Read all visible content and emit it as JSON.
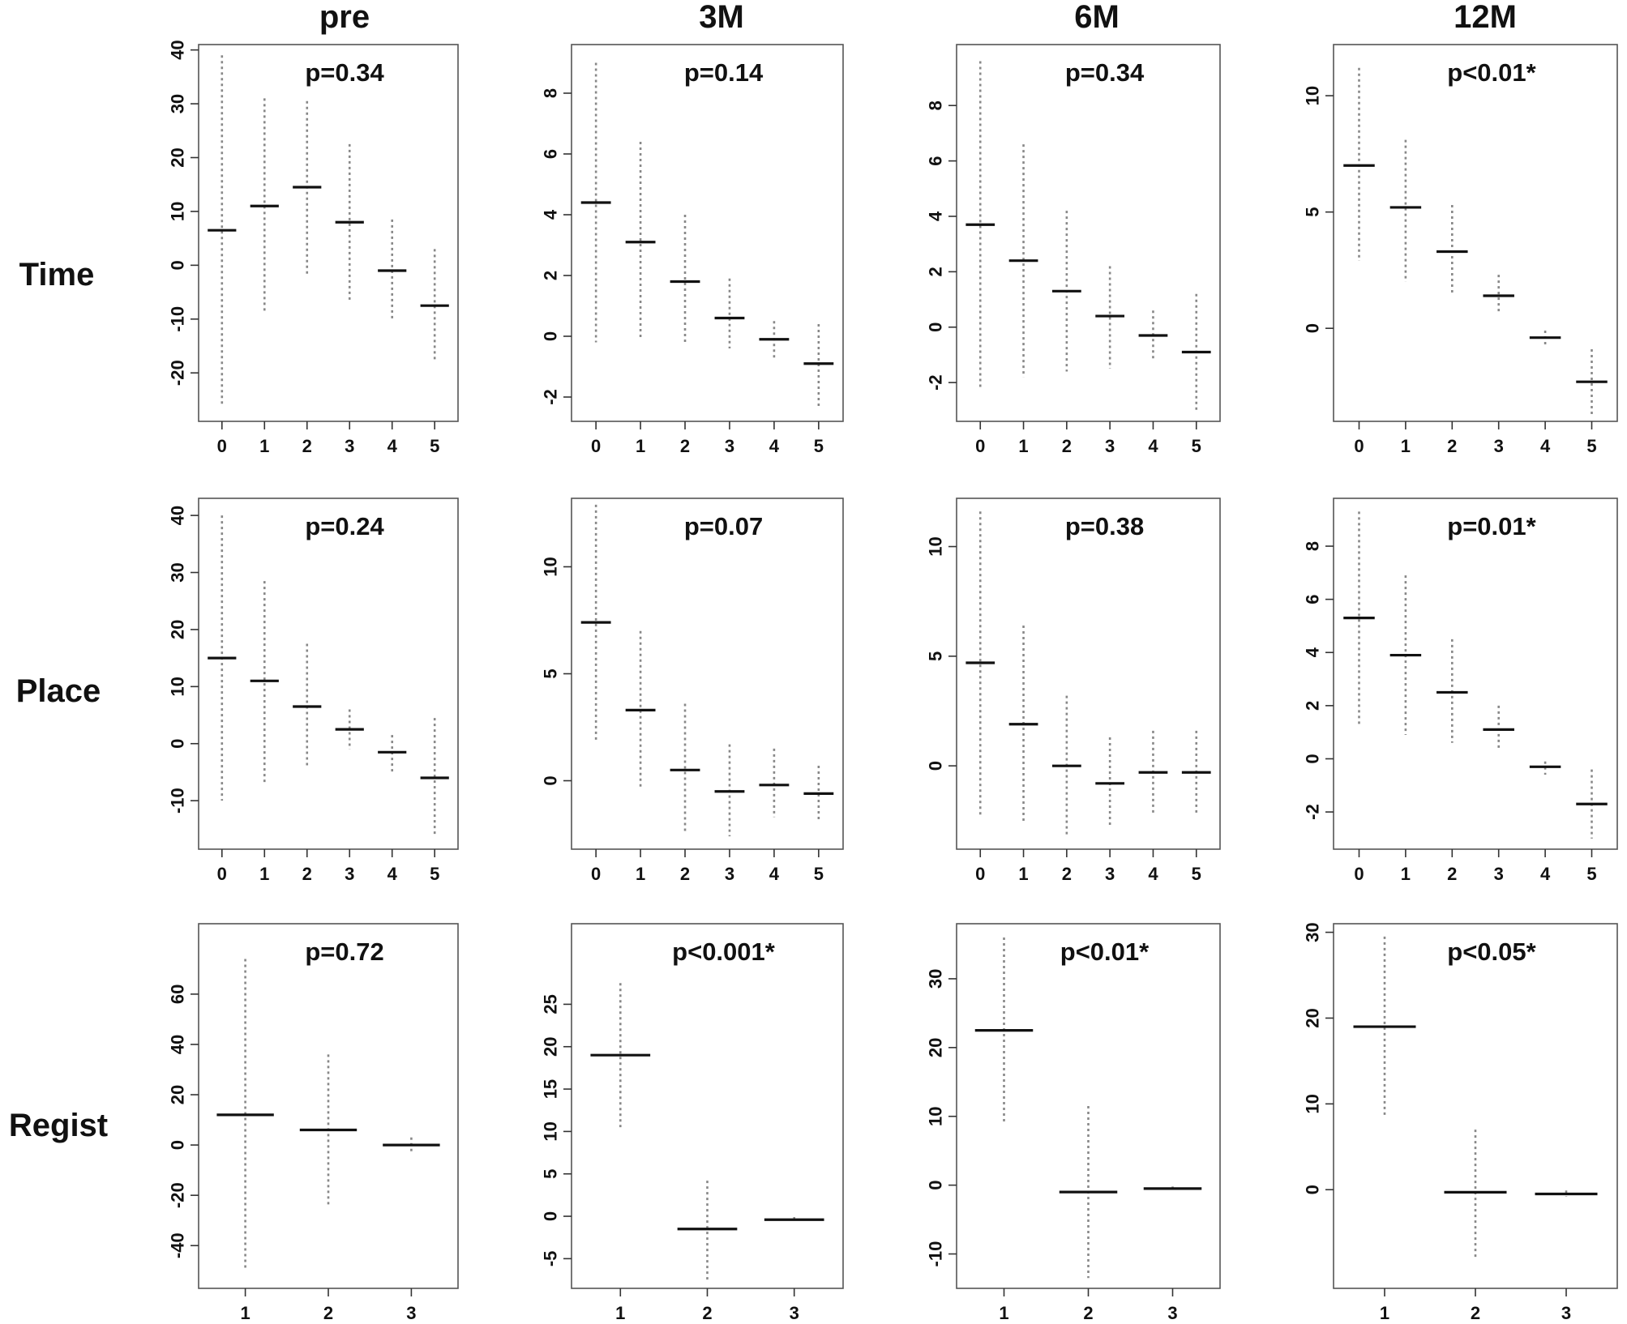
{
  "column_titles": [
    "pre",
    "3M",
    "6M",
    "12M"
  ],
  "row_titles": [
    "Time",
    "Place",
    "Regist"
  ],
  "chart_data": [
    {
      "type": "box",
      "row": "Time",
      "column": "pre",
      "pvalue": "p=0.34",
      "categories": [
        "0",
        "1",
        "2",
        "3",
        "4",
        "5"
      ],
      "ylim": [
        -29,
        41
      ],
      "yticks": [
        -20,
        -10,
        0,
        10,
        20,
        30,
        40
      ],
      "series": [
        {
          "x": "0",
          "median": 6.5,
          "low": -26,
          "high": 39
        },
        {
          "x": "1",
          "median": 11,
          "low": -9,
          "high": 31
        },
        {
          "x": "2",
          "median": 14.5,
          "low": -2,
          "high": 30.5
        },
        {
          "x": "3",
          "median": 8,
          "low": -6.5,
          "high": 22.5
        },
        {
          "x": "4",
          "median": -1,
          "low": -10,
          "high": 8.5
        },
        {
          "x": "5",
          "median": -7.5,
          "low": -17.5,
          "high": 3
        }
      ]
    },
    {
      "type": "box",
      "row": "Time",
      "column": "3M",
      "pvalue": "p=0.14",
      "categories": [
        "0",
        "1",
        "2",
        "3",
        "4",
        "5"
      ],
      "ylim": [
        -2.8,
        9.6
      ],
      "yticks": [
        -2,
        0,
        2,
        4,
        6,
        8
      ],
      "series": [
        {
          "x": "0",
          "median": 4.4,
          "low": -0.2,
          "high": 9
        },
        {
          "x": "1",
          "median": 3.1,
          "low": -0.1,
          "high": 6.4
        },
        {
          "x": "2",
          "median": 1.8,
          "low": -0.2,
          "high": 4
        },
        {
          "x": "3",
          "median": 0.6,
          "low": -0.4,
          "high": 1.9
        },
        {
          "x": "4",
          "median": -0.1,
          "low": -0.7,
          "high": 0.5
        },
        {
          "x": "5",
          "median": -0.9,
          "low": -2.4,
          "high": 0.4
        }
      ]
    },
    {
      "type": "box",
      "row": "Time",
      "column": "6M",
      "pvalue": "p=0.34",
      "categories": [
        "0",
        "1",
        "2",
        "3",
        "4",
        "5"
      ],
      "ylim": [
        -3.4,
        10.2
      ],
      "yticks": [
        -2,
        0,
        2,
        4,
        6,
        8
      ],
      "series": [
        {
          "x": "0",
          "median": 3.7,
          "low": -2.2,
          "high": 9.6
        },
        {
          "x": "1",
          "median": 2.4,
          "low": -1.8,
          "high": 6.6
        },
        {
          "x": "2",
          "median": 1.3,
          "low": -1.6,
          "high": 4.2
        },
        {
          "x": "3",
          "median": 0.4,
          "low": -1.5,
          "high": 2.2
        },
        {
          "x": "4",
          "median": -0.3,
          "low": -1.2,
          "high": 0.6
        },
        {
          "x": "5",
          "median": -0.9,
          "low": -3,
          "high": 1.2
        }
      ]
    },
    {
      "type": "box",
      "row": "Time",
      "column": "12M",
      "pvalue": "p<0.01*",
      "categories": [
        "0",
        "1",
        "2",
        "3",
        "4",
        "5"
      ],
      "ylim": [
        -4,
        12.2
      ],
      "yticks": [
        0,
        5,
        10
      ],
      "series": [
        {
          "x": "0",
          "median": 7,
          "low": 2.9,
          "high": 11.2
        },
        {
          "x": "1",
          "median": 5.2,
          "low": 2,
          "high": 8.1
        },
        {
          "x": "2",
          "median": 3.3,
          "low": 1.4,
          "high": 5.3
        },
        {
          "x": "3",
          "median": 1.4,
          "low": 0.6,
          "high": 2.3
        },
        {
          "x": "4",
          "median": -0.4,
          "low": -0.7,
          "high": -0.1
        },
        {
          "x": "5",
          "median": -2.3,
          "low": -3.7,
          "high": -0.9
        }
      ]
    },
    {
      "type": "box",
      "row": "Place",
      "column": "pre",
      "pvalue": "p=0.24",
      "categories": [
        "0",
        "1",
        "2",
        "3",
        "4",
        "5"
      ],
      "ylim": [
        -18.5,
        43
      ],
      "yticks": [
        -10,
        0,
        10,
        20,
        30,
        40
      ],
      "series": [
        {
          "x": "0",
          "median": 15,
          "low": -10,
          "high": 40
        },
        {
          "x": "1",
          "median": 11,
          "low": -7,
          "high": 28.5
        },
        {
          "x": "2",
          "median": 6.5,
          "low": -4,
          "high": 17.5
        },
        {
          "x": "3",
          "median": 2.5,
          "low": -1,
          "high": 6
        },
        {
          "x": "4",
          "median": -1.5,
          "low": -5,
          "high": 1.5
        },
        {
          "x": "5",
          "median": -6,
          "low": -16,
          "high": 4.5
        }
      ]
    },
    {
      "type": "box",
      "row": "Place",
      "column": "3M",
      "pvalue": "p=0.07",
      "categories": [
        "0",
        "1",
        "2",
        "3",
        "4",
        "5"
      ],
      "ylim": [
        -3.2,
        13.2
      ],
      "yticks": [
        0,
        5,
        10
      ],
      "series": [
        {
          "x": "0",
          "median": 7.4,
          "low": 1.9,
          "high": 12.9
        },
        {
          "x": "1",
          "median": 3.3,
          "low": -0.3,
          "high": 7
        },
        {
          "x": "2",
          "median": 0.5,
          "low": -2.5,
          "high": 3.6
        },
        {
          "x": "3",
          "median": -0.5,
          "low": -2.6,
          "high": 1.7
        },
        {
          "x": "4",
          "median": -0.2,
          "low": -1.7,
          "high": 1.5
        },
        {
          "x": "5",
          "median": -0.6,
          "low": -1.9,
          "high": 0.7
        }
      ]
    },
    {
      "type": "box",
      "row": "Place",
      "column": "6M",
      "pvalue": "p=0.38",
      "categories": [
        "0",
        "1",
        "2",
        "3",
        "4",
        "5"
      ],
      "ylim": [
        -3.8,
        12.2
      ],
      "yticks": [
        0,
        5,
        10
      ],
      "series": [
        {
          "x": "0",
          "median": 4.7,
          "low": -2.3,
          "high": 11.6
        },
        {
          "x": "1",
          "median": 1.9,
          "low": -2.6,
          "high": 6.4
        },
        {
          "x": "2",
          "median": 0,
          "low": -3.2,
          "high": 3.2
        },
        {
          "x": "3",
          "median": -0.8,
          "low": -2.8,
          "high": 1.3
        },
        {
          "x": "4",
          "median": -0.3,
          "low": -2.2,
          "high": 1.6
        },
        {
          "x": "5",
          "median": -0.3,
          "low": -2.2,
          "high": 1.6
        }
      ]
    },
    {
      "type": "box",
      "row": "Place",
      "column": "12M",
      "pvalue": "p=0.01*",
      "categories": [
        "0",
        "1",
        "2",
        "3",
        "4",
        "5"
      ],
      "ylim": [
        -3.4,
        9.8
      ],
      "yticks": [
        -2,
        0,
        2,
        4,
        6,
        8
      ],
      "series": [
        {
          "x": "0",
          "median": 5.3,
          "low": 1.2,
          "high": 9.3
        },
        {
          "x": "1",
          "median": 3.9,
          "low": 0.9,
          "high": 6.9
        },
        {
          "x": "2",
          "median": 2.5,
          "low": 0.6,
          "high": 4.5
        },
        {
          "x": "3",
          "median": 1.1,
          "low": 0.3,
          "high": 2
        },
        {
          "x": "4",
          "median": -0.3,
          "low": -0.6,
          "high": -0.1
        },
        {
          "x": "5",
          "median": -1.7,
          "low": -3,
          "high": -0.4
        }
      ]
    },
    {
      "type": "box",
      "row": "Regist",
      "column": "pre",
      "pvalue": "p=0.72",
      "categories": [
        "1",
        "2",
        "3"
      ],
      "ylim": [
        -57,
        88
      ],
      "yticks": [
        -40,
        -20,
        0,
        20,
        40,
        60
      ],
      "series": [
        {
          "x": "1",
          "median": 12,
          "low": -50,
          "high": 74
        },
        {
          "x": "2",
          "median": 6,
          "low": -24,
          "high": 36
        },
        {
          "x": "3",
          "median": 0,
          "low": -3,
          "high": 3
        }
      ]
    },
    {
      "type": "box",
      "row": "Regist",
      "column": "3M",
      "pvalue": "p<0.001*",
      "categories": [
        "1",
        "2",
        "3"
      ],
      "ylim": [
        -8.5,
        34.5
      ],
      "yticks": [
        -5,
        0,
        5,
        10,
        15,
        20,
        25
      ],
      "series": [
        {
          "x": "1",
          "median": 19,
          "low": 10.5,
          "high": 27.5
        },
        {
          "x": "2",
          "median": -1.5,
          "low": -7.5,
          "high": 4.2
        },
        {
          "x": "3",
          "median": -0.4,
          "low": -0.7,
          "high": -0.1
        }
      ]
    },
    {
      "type": "box",
      "row": "Regist",
      "column": "6M",
      "pvalue": "p<0.01*",
      "categories": [
        "1",
        "2",
        "3"
      ],
      "ylim": [
        -15,
        38
      ],
      "yticks": [
        -10,
        0,
        10,
        20,
        30
      ],
      "series": [
        {
          "x": "1",
          "median": 22.5,
          "low": 9,
          "high": 36
        },
        {
          "x": "2",
          "median": -1,
          "low": -13.5,
          "high": 11.5
        },
        {
          "x": "3",
          "median": -0.5,
          "low": -0.8,
          "high": -0.2
        }
      ]
    },
    {
      "type": "box",
      "row": "Regist",
      "column": "12M",
      "pvalue": "p<0.05*",
      "categories": [
        "1",
        "2",
        "3"
      ],
      "ylim": [
        -11.5,
        31
      ],
      "yticks": [
        0,
        10,
        20,
        30
      ],
      "series": [
        {
          "x": "1",
          "median": 19,
          "low": 8.5,
          "high": 29.5
        },
        {
          "x": "2",
          "median": -0.3,
          "low": -8,
          "high": 7
        },
        {
          "x": "3",
          "median": -0.5,
          "low": -0.8,
          "high": -0.1
        }
      ]
    }
  ]
}
